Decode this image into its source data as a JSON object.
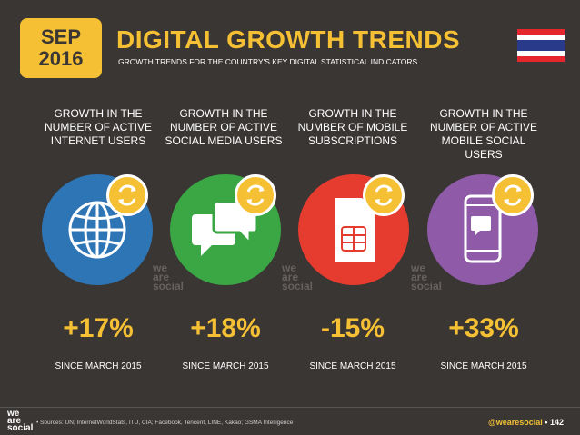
{
  "date": {
    "month": "SEP",
    "year": "2016"
  },
  "title": "DIGITAL GROWTH TRENDS",
  "subtitle": "GROWTH TRENDS FOR THE COUNTRY'S KEY DIGITAL STATISTICAL INDICATORS",
  "colors": {
    "accent": "#f5c034",
    "background": "#3a3634",
    "internet": "#2e75b6",
    "social": "#3aa644",
    "mobile": "#e63c30",
    "mobile_social": "#8f5aa8"
  },
  "flag": {
    "stripes": [
      "#e5262c",
      "#ffffff",
      "#2a3a8a",
      "#2a3a8a",
      "#ffffff",
      "#e5262c"
    ]
  },
  "columns": [
    {
      "title": "GROWTH IN THE NUMBER OF ACTIVE INTERNET USERS",
      "icon": "globe-icon",
      "value": "+17%",
      "since": "SINCE MARCH 2015"
    },
    {
      "title": "GROWTH IN THE NUMBER OF ACTIVE SOCIAL MEDIA USERS",
      "icon": "chat-bubbles-icon",
      "value": "+18%",
      "since": "SINCE MARCH 2015"
    },
    {
      "title": "GROWTH IN THE NUMBER OF MOBILE SUBSCRIPTIONS",
      "icon": "sim-card-icon",
      "value": "-15%",
      "since": "SINCE MARCH 2015"
    },
    {
      "title": "GROWTH IN THE NUMBER OF ACTIVE MOBILE SOCIAL USERS",
      "icon": "phone-chat-icon",
      "value": "+33%",
      "since": "SINCE MARCH 2015"
    }
  ],
  "watermark": {
    "line1": "we",
    "line2": "are",
    "line3": "social"
  },
  "footer": {
    "logo": [
      "we",
      "are",
      "social"
    ],
    "sources": "• Sources: UN; InternetWorldStats, ITU, CIA; Facebook, Tencent, LINE, Kakao; GSMA Intelligence",
    "handle": "@wearesocial",
    "separator": "•",
    "page": "142"
  }
}
